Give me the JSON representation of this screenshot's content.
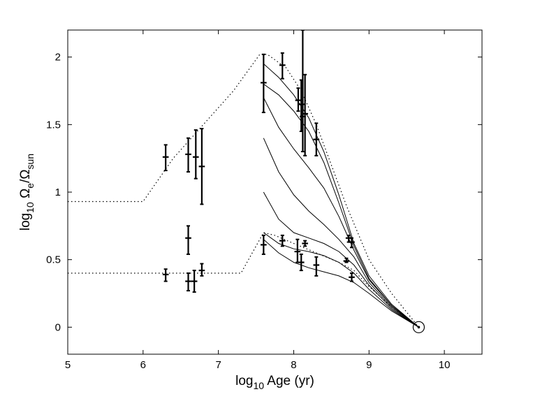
{
  "chart_data": {
    "type": "line",
    "title": "",
    "xlabel": {
      "prefix": "log",
      "sub": "10",
      "rest": " Age (yr)"
    },
    "ylabel": {
      "prefix": "log",
      "sub1": "10",
      "omega1": " Ω",
      "sub2": "e",
      "mid": "/Ω",
      "sub3": "sun"
    },
    "xlim": [
      5,
      10.5
    ],
    "ylim": [
      -0.2,
      2.2
    ],
    "xticks": [
      5,
      6,
      7,
      8,
      9,
      10
    ],
    "xtick_labels": [
      "5",
      "6",
      "7",
      "8",
      "9",
      "10"
    ],
    "yticks": [
      0,
      0.5,
      1,
      1.5,
      2
    ],
    "ytick_labels": [
      "0",
      "0.5",
      "1",
      "1.5",
      "2"
    ],
    "grid": false,
    "dotted_series": [
      {
        "name": "upper-dotted-envelope",
        "x": [
          5,
          6.0,
          6.4,
          6.8,
          7.2,
          7.55,
          7.65,
          7.9,
          8.1,
          8.3,
          8.5,
          8.7,
          9.0,
          9.3,
          9.66
        ],
        "y": [
          0.93,
          0.93,
          1.25,
          1.5,
          1.75,
          2.02,
          2.02,
          1.92,
          1.75,
          1.5,
          1.2,
          0.9,
          0.5,
          0.25,
          0
        ]
      },
      {
        "name": "lower-dotted-envelope",
        "x": [
          5,
          7.3,
          7.5,
          7.6,
          7.75,
          8.0,
          8.3,
          8.6,
          8.8,
          9.0,
          9.3,
          9.66
        ],
        "y": [
          0.4,
          0.4,
          0.6,
          0.7,
          0.68,
          0.62,
          0.55,
          0.48,
          0.42,
          0.3,
          0.15,
          0
        ]
      }
    ],
    "solid_series": [
      {
        "name": "track-1",
        "x": [
          7.6,
          7.8,
          8.0,
          8.2,
          8.4,
          8.6,
          8.8,
          9.0,
          9.3,
          9.66
        ],
        "y": [
          1.95,
          1.85,
          1.72,
          1.55,
          1.3,
          0.98,
          0.62,
          0.38,
          0.17,
          0
        ]
      },
      {
        "name": "track-2",
        "x": [
          7.6,
          7.8,
          8.0,
          8.2,
          8.4,
          8.6,
          8.8,
          9.0,
          9.3,
          9.66
        ],
        "y": [
          1.8,
          1.72,
          1.6,
          1.45,
          1.22,
          0.92,
          0.6,
          0.36,
          0.16,
          0
        ]
      },
      {
        "name": "track-3",
        "x": [
          7.6,
          7.8,
          8.0,
          8.2,
          8.4,
          8.6,
          8.8,
          9.0,
          9.3,
          9.66
        ],
        "y": [
          1.7,
          1.48,
          1.32,
          1.18,
          1.03,
          0.82,
          0.57,
          0.35,
          0.16,
          0
        ]
      },
      {
        "name": "track-4",
        "x": [
          7.6,
          7.8,
          8.0,
          8.2,
          8.4,
          8.6,
          8.8,
          9.0,
          9.3,
          9.66
        ],
        "y": [
          1.4,
          1.15,
          0.98,
          0.86,
          0.76,
          0.65,
          0.52,
          0.33,
          0.15,
          0
        ]
      },
      {
        "name": "track-5",
        "x": [
          7.6,
          7.8,
          8.0,
          8.2,
          8.4,
          8.6,
          8.8,
          9.0,
          9.3,
          9.66
        ],
        "y": [
          1.0,
          0.8,
          0.7,
          0.66,
          0.62,
          0.56,
          0.46,
          0.31,
          0.14,
          0
        ]
      },
      {
        "name": "track-6",
        "x": [
          7.6,
          7.8,
          8.0,
          8.2,
          8.4,
          8.6,
          8.8,
          9.0,
          9.3,
          9.66
        ],
        "y": [
          0.7,
          0.62,
          0.58,
          0.56,
          0.53,
          0.48,
          0.4,
          0.28,
          0.13,
          0
        ]
      },
      {
        "name": "track-7",
        "x": [
          7.6,
          7.8,
          8.0,
          8.2,
          8.4,
          8.6,
          8.8,
          9.0,
          9.3,
          9.66
        ],
        "y": [
          0.65,
          0.55,
          0.48,
          0.44,
          0.41,
          0.38,
          0.33,
          0.25,
          0.12,
          0
        ]
      }
    ],
    "error_points": [
      {
        "x": 6.3,
        "y": 1.26,
        "ylo": 1.16,
        "yhi": 1.35,
        "xerr": 0.04
      },
      {
        "x": 6.6,
        "y": 1.28,
        "ylo": 1.15,
        "yhi": 1.4,
        "xerr": 0.04
      },
      {
        "x": 6.7,
        "y": 1.26,
        "ylo": 1.1,
        "yhi": 1.46,
        "xerr": 0.04
      },
      {
        "x": 6.78,
        "y": 1.19,
        "ylo": 0.91,
        "yhi": 1.47,
        "xerr": 0.04
      },
      {
        "x": 7.6,
        "y": 1.81,
        "ylo": 1.59,
        "yhi": 2.02,
        "xerr": 0.04
      },
      {
        "x": 7.85,
        "y": 1.94,
        "ylo": 1.84,
        "yhi": 2.03,
        "xerr": 0.04
      },
      {
        "x": 8.06,
        "y": 1.68,
        "ylo": 1.6,
        "yhi": 1.77,
        "xerr": 0.04
      },
      {
        "x": 8.1,
        "y": 1.65,
        "ylo": 1.45,
        "yhi": 1.83,
        "xerr": 0.04
      },
      {
        "x": 8.12,
        "y": 1.56,
        "ylo": 1.3,
        "yhi": 2.2,
        "xerr": 0.04
      },
      {
        "x": 8.15,
        "y": 1.58,
        "ylo": 1.27,
        "yhi": 1.87,
        "xerr": 0.04
      },
      {
        "x": 8.3,
        "y": 1.39,
        "ylo": 1.27,
        "yhi": 1.51,
        "xerr": 0.04
      },
      {
        "x": 8.73,
        "y": 0.66,
        "ylo": 0.63,
        "yhi": 0.68,
        "xerr": 0.04
      },
      {
        "x": 8.77,
        "y": 0.63,
        "ylo": 0.59,
        "yhi": 0.66,
        "xerr": 0.04
      },
      {
        "x": 6.3,
        "y": 0.39,
        "ylo": 0.34,
        "yhi": 0.43,
        "xerr": 0.04
      },
      {
        "x": 6.6,
        "y": 0.66,
        "ylo": 0.54,
        "yhi": 0.75,
        "xerr": 0.04
      },
      {
        "x": 6.6,
        "y": 0.34,
        "ylo": 0.27,
        "yhi": 0.4,
        "xerr": 0.04
      },
      {
        "x": 6.68,
        "y": 0.34,
        "ylo": 0.26,
        "yhi": 0.42,
        "xerr": 0.04
      },
      {
        "x": 6.78,
        "y": 0.42,
        "ylo": 0.38,
        "yhi": 0.47,
        "xerr": 0.04
      },
      {
        "x": 7.6,
        "y": 0.61,
        "ylo": 0.54,
        "yhi": 0.68,
        "xerr": 0.04
      },
      {
        "x": 7.85,
        "y": 0.64,
        "ylo": 0.6,
        "yhi": 0.68,
        "xerr": 0.04
      },
      {
        "x": 8.05,
        "y": 0.56,
        "ylo": 0.48,
        "yhi": 0.65,
        "xerr": 0.04
      },
      {
        "x": 8.1,
        "y": 0.48,
        "ylo": 0.42,
        "yhi": 0.54,
        "xerr": 0.04
      },
      {
        "x": 8.15,
        "y": 0.62,
        "ylo": 0.6,
        "yhi": 0.64,
        "xerr": 0.04
      },
      {
        "x": 8.3,
        "y": 0.46,
        "ylo": 0.38,
        "yhi": 0.52,
        "xerr": 0.04
      },
      {
        "x": 8.7,
        "y": 0.49,
        "ylo": 0.48,
        "yhi": 0.51,
        "xerr": 0.04
      },
      {
        "x": 8.77,
        "y": 0.37,
        "ylo": 0.34,
        "yhi": 0.4,
        "xerr": 0.04
      }
    ],
    "sun_marker": {
      "x": 9.66,
      "y": 0.0,
      "symbol": "sun-circle-dot"
    }
  }
}
